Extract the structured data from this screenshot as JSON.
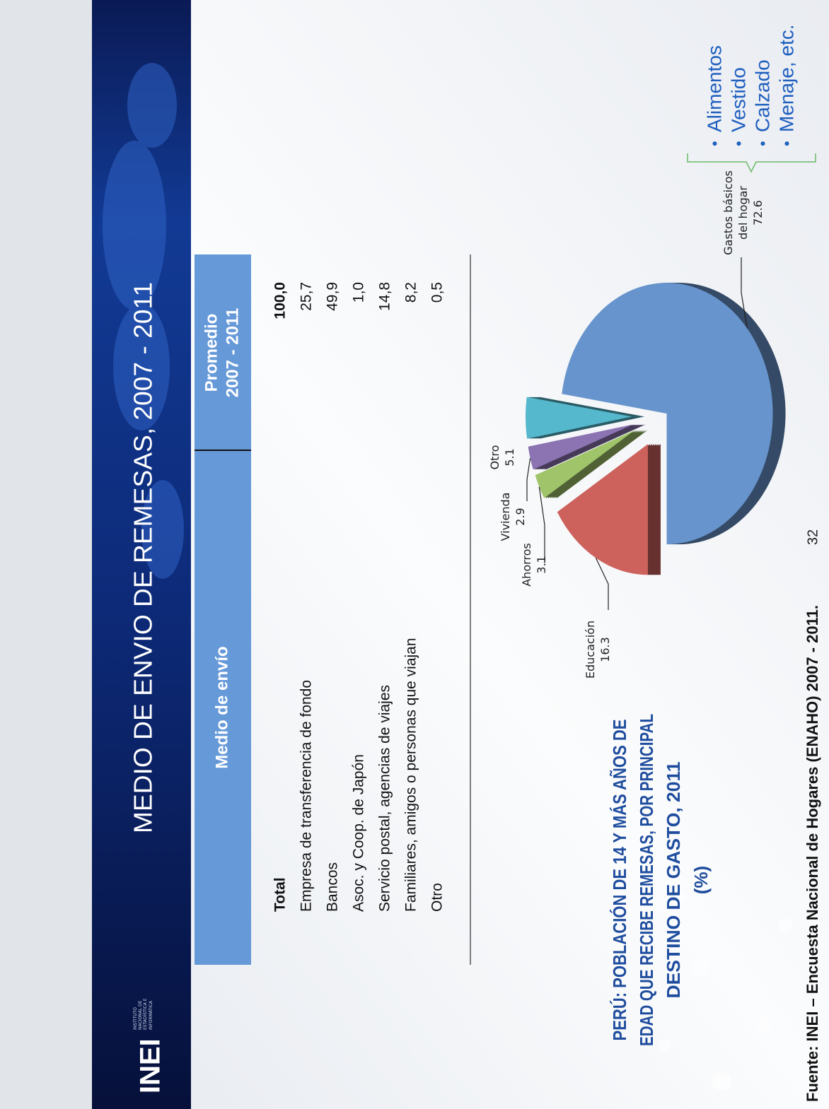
{
  "header": {
    "title": "MEDIO DE ENVIO DE REMESAS, 2007 - 2011",
    "logo": "INEI",
    "logo_caption": "INSTITUTO NACIONAL DE ESTADÍSTICA E INFORMÁTICA"
  },
  "table": {
    "columns": [
      [
        "Medio de envío"
      ],
      [
        "Promedio",
        "2007 - 2011"
      ]
    ],
    "rows": [
      [
        "Total",
        "100,0"
      ],
      [
        "Empresa de transferencia de fondo",
        "25,7"
      ],
      [
        "Bancos",
        "49,9"
      ],
      [
        "Asoc. y Coop. de Japón",
        "1,0"
      ],
      [
        "Servicio postal, agencias de viajes",
        "14,8"
      ],
      [
        "Familiares, amigos o personas que viajan",
        "8,2"
      ],
      [
        "Otro",
        "0,5"
      ]
    ]
  },
  "chart_data": {
    "type": "pie",
    "title": [
      "PERÚ: POBLACIÓN DE 14 Y MÁS AÑOS DE",
      "EDAD QUE RECIBE REMESAS, POR PRINCIPAL",
      "DESTINO DE GASTO, 2011",
      "(%)"
    ],
    "categories": [
      "Educación",
      "Ahorros",
      "Vivienda",
      "Otro",
      "Gastos básicos del hogar"
    ],
    "values": [
      16.3,
      3.1,
      2.9,
      5.1,
      72.6
    ],
    "colors": [
      "#cd625d",
      "#9fc46a",
      "#8c74b2",
      "#55b8cc",
      "#6794cc"
    ],
    "annotation_items": [
      "Alimentos",
      "Vestido",
      "Calzado",
      "Menaje, etc."
    ]
  },
  "footer": {
    "source": "Fuente: INEI – Encuesta Nacional de Hogares (ENAHO) 2007 - 2011.",
    "page": "32"
  }
}
